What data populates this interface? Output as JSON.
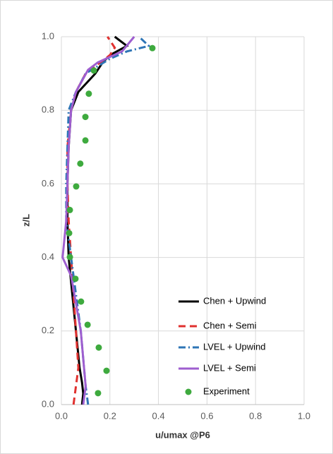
{
  "chart_data": {
    "type": "line",
    "x_label": "u/umax @P6",
    "y_label": "z/L",
    "xlim": [
      0,
      1
    ],
    "ylim": [
      0,
      1
    ],
    "xticks": [
      {
        "value": 0,
        "label": "0.0"
      },
      {
        "value": 0.2,
        "label": "0.2"
      },
      {
        "value": 0.4,
        "label": "0.4"
      },
      {
        "value": 0.6,
        "label": "0.6"
      },
      {
        "value": 0.8,
        "label": "0.8"
      },
      {
        "value": 1,
        "label": "1.0"
      }
    ],
    "yticks": [
      {
        "value": 0,
        "label": "0.0"
      },
      {
        "value": 0.2,
        "label": "0.2"
      },
      {
        "value": 0.4,
        "label": "0.4"
      },
      {
        "value": 0.6,
        "label": "0.6"
      },
      {
        "value": 0.8,
        "label": "0.8"
      },
      {
        "value": 1,
        "label": "1.0"
      }
    ],
    "grid": true,
    "legend": "lower right",
    "series": [
      {
        "name": "Chen + Upwind",
        "color": "#000000",
        "style": "solid",
        "x": [
          0.085,
          0.09,
          0.085,
          0.075,
          0.06,
          0.045,
          0.03,
          0.025,
          0.025,
          0.03,
          0.04,
          0.07,
          0.14,
          0.17,
          0.2,
          0.27,
          0.22
        ],
        "values": [
          0,
          0.03,
          0.06,
          0.1,
          0.2,
          0.3,
          0.4,
          0.5,
          0.6,
          0.7,
          0.8,
          0.85,
          0.9,
          0.93,
          0.95,
          0.975,
          1
        ]
      },
      {
        "name": "Chen + Semi",
        "color": "#e0312f",
        "style": "dash",
        "x": [
          0.05,
          0.06,
          0.07,
          0.06,
          0.05,
          0.04,
          0.03,
          0.025,
          0.025,
          0.04,
          0.06,
          0.1,
          0.2,
          0.22,
          0.19
        ],
        "values": [
          0,
          0.05,
          0.1,
          0.2,
          0.3,
          0.4,
          0.5,
          0.6,
          0.7,
          0.8,
          0.85,
          0.9,
          0.95,
          0.97,
          1
        ]
      },
      {
        "name": "LVEL + Upwind",
        "color": "#2e75b6",
        "style": "dashdot",
        "x": [
          0.11,
          0.1,
          0.08,
          0.06,
          0.04,
          0.02,
          0.02,
          0.025,
          0.03,
          0.06,
          0.1,
          0.2,
          0.27,
          0.36,
          0.32
        ],
        "values": [
          0,
          0.05,
          0.2,
          0.3,
          0.4,
          0.5,
          0.6,
          0.7,
          0.8,
          0.85,
          0.9,
          0.94,
          0.96,
          0.975,
          1
        ]
      },
      {
        "name": "LVEL + Semi",
        "color": "#9e5ecf",
        "style": "solid",
        "x": [
          0.09,
          0.1,
          0.08,
          0.04,
          0.005,
          0.02,
          0.025,
          0.03,
          0.04,
          0.06,
          0.11,
          0.15,
          0.25,
          0.3
        ],
        "values": [
          0,
          0.05,
          0.2,
          0.35,
          0.4,
          0.5,
          0.6,
          0.7,
          0.8,
          0.85,
          0.91,
          0.93,
          0.96,
          1
        ]
      },
      {
        "name": "Experiment",
        "color": "#3eaa3e",
        "style": "markers",
        "x": [
          0.151,
          0.186,
          0.154,
          0.108,
          0.081,
          0.058,
          0.035,
          0.032,
          0.035,
          0.061,
          0.078,
          0.099,
          0.099,
          0.113,
          0.134,
          0.375
        ],
        "values": [
          0.031,
          0.092,
          0.155,
          0.217,
          0.28,
          0.342,
          0.401,
          0.466,
          0.529,
          0.593,
          0.655,
          0.718,
          0.782,
          0.845,
          0.908,
          0.969
        ]
      }
    ]
  }
}
